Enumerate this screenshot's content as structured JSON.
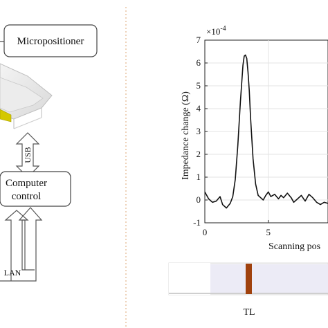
{
  "diagram": {
    "micropositioner_label": "Micropositioner",
    "usb_label": "USB",
    "computer_control_line1": "Computer",
    "computer_control_line2": "control",
    "lan_label": "LAN"
  },
  "chart_data": {
    "type": "line",
    "title": "",
    "xlabel": "Scanning pos",
    "ylabel": "Impedance change (Ω)",
    "y_exponent_label": "×10",
    "y_exponent_power": "-4",
    "xlim": [
      0,
      9.7
    ],
    "ylim": [
      -1,
      7
    ],
    "x_ticks": [
      "0",
      "5"
    ],
    "y_ticks": [
      "7",
      "6",
      "5",
      "4",
      "3",
      "2",
      "1",
      "0",
      "-1"
    ],
    "grid": true,
    "series": [
      {
        "color": "#111111",
        "x": [
          0,
          0.3,
          0.6,
          0.9,
          1.2,
          1.4,
          1.7,
          2.0,
          2.2,
          2.4,
          2.6,
          2.8,
          3.0,
          3.1,
          3.2,
          3.3,
          3.4,
          3.5,
          3.6,
          3.8,
          4.0,
          4.2,
          4.4,
          4.6,
          4.8,
          5.0,
          5.2,
          5.5,
          5.8,
          6.0,
          6.2,
          6.5,
          6.8,
          7.0,
          7.3,
          7.6,
          7.9,
          8.2,
          8.5,
          8.8,
          9.1,
          9.4,
          9.7
        ],
        "values": [
          0.35,
          0.05,
          -0.1,
          -0.05,
          0.15,
          -0.2,
          -0.35,
          -0.15,
          0.15,
          0.9,
          2.4,
          4.3,
          5.9,
          6.3,
          6.35,
          6.2,
          5.6,
          4.8,
          3.6,
          1.8,
          0.7,
          0.2,
          0.1,
          0.0,
          0.2,
          0.35,
          0.15,
          0.25,
          0.05,
          0.2,
          0.1,
          0.3,
          0.1,
          -0.1,
          0.05,
          0.2,
          -0.05,
          0.25,
          0.1,
          -0.1,
          -0.2,
          -0.1,
          -0.15
        ]
      }
    ]
  },
  "strip": {
    "label": "TL",
    "line_color": "#a0410d"
  }
}
